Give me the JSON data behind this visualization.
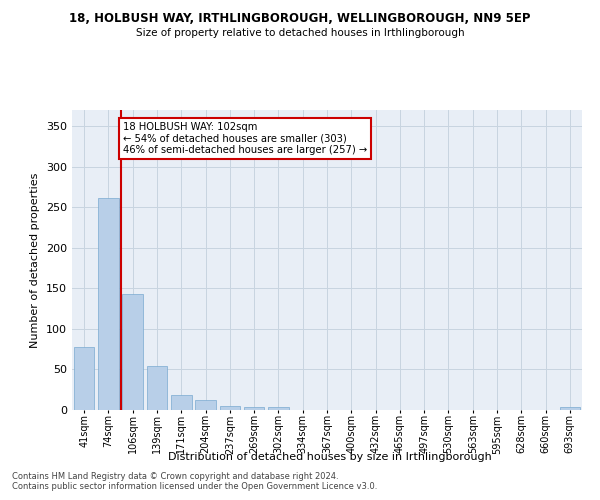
{
  "title1": "18, HOLBUSH WAY, IRTHLINGBOROUGH, WELLINGBOROUGH, NN9 5EP",
  "title2": "Size of property relative to detached houses in Irthlingborough",
  "xlabel": "Distribution of detached houses by size in Irthlingborough",
  "ylabel": "Number of detached properties",
  "categories": [
    "41sqm",
    "74sqm",
    "106sqm",
    "139sqm",
    "171sqm",
    "204sqm",
    "237sqm",
    "269sqm",
    "302sqm",
    "334sqm",
    "367sqm",
    "400sqm",
    "432sqm",
    "465sqm",
    "497sqm",
    "530sqm",
    "563sqm",
    "595sqm",
    "628sqm",
    "660sqm",
    "693sqm"
  ],
  "values": [
    78,
    262,
    143,
    54,
    19,
    12,
    5,
    4,
    4,
    0,
    0,
    0,
    0,
    0,
    0,
    0,
    0,
    0,
    0,
    0,
    4
  ],
  "bar_color": "#b8cfe8",
  "bar_edge_color": "#7aaad0",
  "grid_color": "#c8d4e0",
  "background_color": "#e8eef6",
  "red_line_x": 1.5,
  "annotation_title": "18 HOLBUSH WAY: 102sqm",
  "annotation_line1": "← 54% of detached houses are smaller (303)",
  "annotation_line2": "46% of semi-detached houses are larger (257) →",
  "annotation_box_color": "#ffffff",
  "annotation_border_color": "#cc0000",
  "red_line_color": "#cc0000",
  "ylim": [
    0,
    370
  ],
  "yticks": [
    0,
    50,
    100,
    150,
    200,
    250,
    300,
    350
  ],
  "footer1": "Contains HM Land Registry data © Crown copyright and database right 2024.",
  "footer2": "Contains public sector information licensed under the Open Government Licence v3.0."
}
